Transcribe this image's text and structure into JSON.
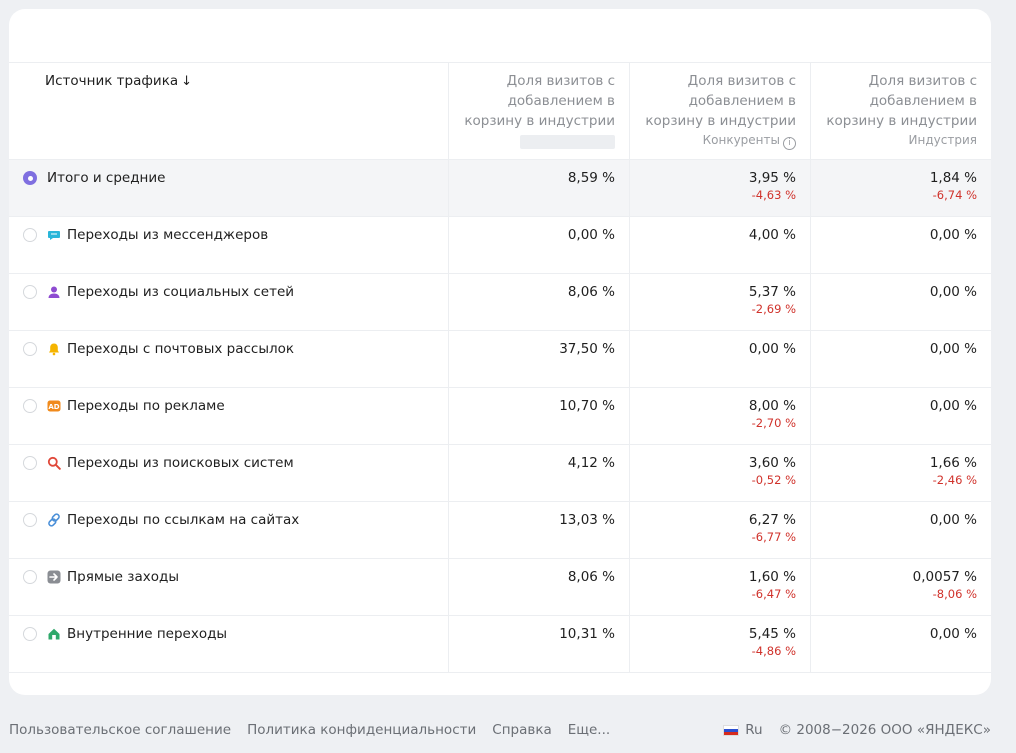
{
  "table": {
    "headers": {
      "source": "Источник трафика",
      "col1_line1": "Доля визитов с",
      "col1_line2": "добавлением в",
      "col1_line3": "корзину в индустрии",
      "col2_line1": "Доля визитов с",
      "col2_line2": "добавлением в",
      "col2_line3": "корзину в индустрии",
      "col2_sub": "Конкуренты",
      "col3_line1": "Доля визитов с",
      "col3_line2": "добавлением в",
      "col3_line3": "корзину в индустрии",
      "col3_sub": "Индустрия"
    },
    "rows": [
      {
        "label": "Итого и средние",
        "v1": "8,59 %",
        "v2": "3,95 %",
        "d2": "-4,63 %",
        "v3": "1,84 %",
        "d3": "-6,74 %",
        "icon": "none"
      },
      {
        "label": "Переходы из мессенджеров",
        "v1": "0,00 %",
        "v2": "4,00 %",
        "d2": "",
        "v3": "0,00 %",
        "d3": "",
        "icon": "chat-bubble-icon"
      },
      {
        "label": "Переходы из социальных сетей",
        "v1": "8,06 %",
        "v2": "5,37 %",
        "d2": "-2,69 %",
        "v3": "0,00 %",
        "d3": "",
        "icon": "person-icon"
      },
      {
        "label": "Переходы с почтовых рассылок",
        "v1": "37,50 %",
        "v2": "0,00 %",
        "d2": "",
        "v3": "0,00 %",
        "d3": "",
        "icon": "bell-icon"
      },
      {
        "label": "Переходы по рекламе",
        "v1": "10,70 %",
        "v2": "8,00 %",
        "d2": "-2,70 %",
        "v3": "0,00 %",
        "d3": "",
        "icon": "ad-icon"
      },
      {
        "label": "Переходы из поисковых систем",
        "v1": "4,12 %",
        "v2": "3,60 %",
        "d2": "-0,52 %",
        "v3": "1,66 %",
        "d3": "-2,46 %",
        "icon": "search-icon"
      },
      {
        "label": "Переходы по ссылкам на сайтах",
        "v1": "13,03 %",
        "v2": "6,27 %",
        "d2": "-6,77 %",
        "v3": "0,00 %",
        "d3": "",
        "icon": "link-icon"
      },
      {
        "label": "Прямые заходы",
        "v1": "8,06 %",
        "v2": "1,60 %",
        "d2": "-6,47 %",
        "v3": "0,0057 %",
        "d3": "-8,06 %",
        "icon": "arrow-right-icon"
      },
      {
        "label": "Внутренние переходы",
        "v1": "10,31 %",
        "v2": "5,45 %",
        "d2": "-4,86 %",
        "v3": "0,00 %",
        "d3": "",
        "icon": "home-icon"
      }
    ]
  },
  "footer": {
    "terms": "Пользовательское соглашение",
    "privacy": "Политика конфиденциальности",
    "help": "Справка",
    "more": "Еще...",
    "lang": "Ru",
    "copyright": "© 2008−2026 ООО «ЯНДЕКС»"
  },
  "colors": {
    "accent": "#7f6fe0",
    "negative": "#d0322b"
  }
}
